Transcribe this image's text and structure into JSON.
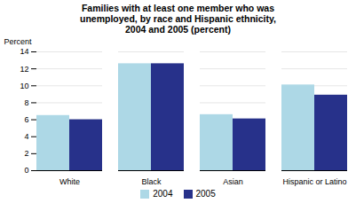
{
  "chart_data": {
    "type": "bar",
    "title": "Families with at least one member who was\nunemployed, by race and Hispanic ethnicity,\n2004 and 2005 (percent)",
    "categories": [
      "White",
      "Black",
      "Asian",
      "Hispanic or Latino"
    ],
    "series": [
      {
        "name": "2004",
        "color": "#add8e6",
        "values": [
          6.5,
          12.6,
          6.6,
          10.1
        ]
      },
      {
        "name": "2005",
        "color": "#27318a",
        "values": [
          6.0,
          12.6,
          6.1,
          8.9
        ]
      }
    ],
    "ylabel": "Percent",
    "ylim": [
      0,
      14
    ],
    "yticks": [
      0,
      2,
      4,
      6,
      8,
      10,
      12,
      14
    ],
    "grid": true,
    "legend": "bottom"
  }
}
